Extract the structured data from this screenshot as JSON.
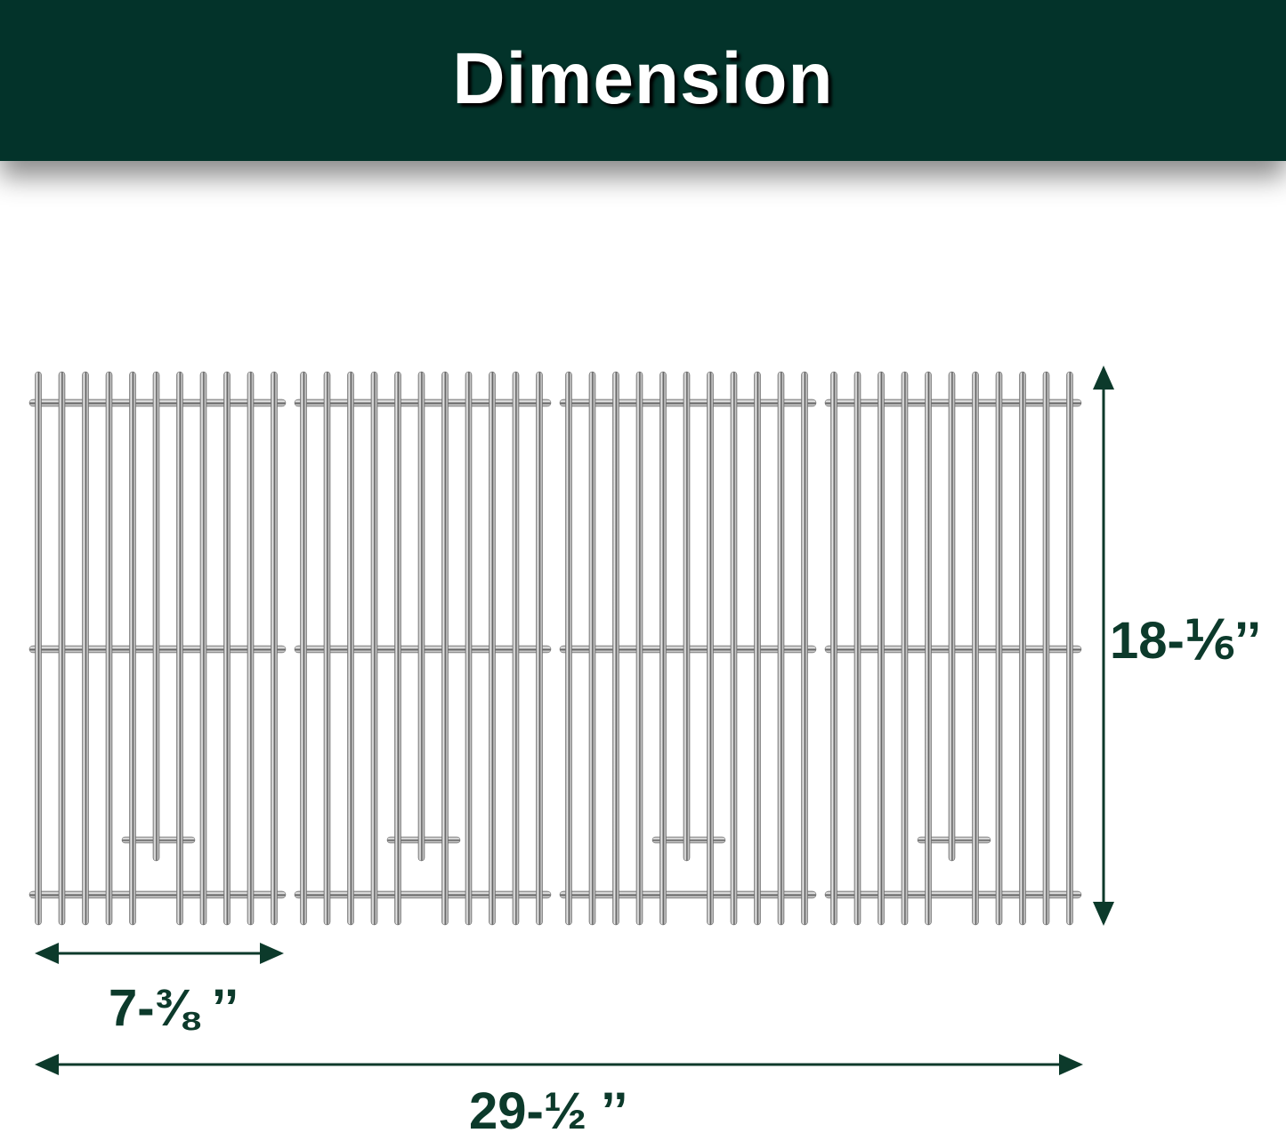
{
  "header": {
    "title": "Dimension"
  },
  "dimensions": {
    "height_label": "18-⅙’’",
    "single_width_label": "7-⅜ ’’",
    "total_width_label": "29-½ ’’"
  },
  "product": {
    "grate_count": 4,
    "rods_per_grate": 11
  },
  "colors": {
    "header_bg": "#03332a",
    "dimension_text": "#0c3a2b",
    "steel": "#9a9a9a"
  }
}
